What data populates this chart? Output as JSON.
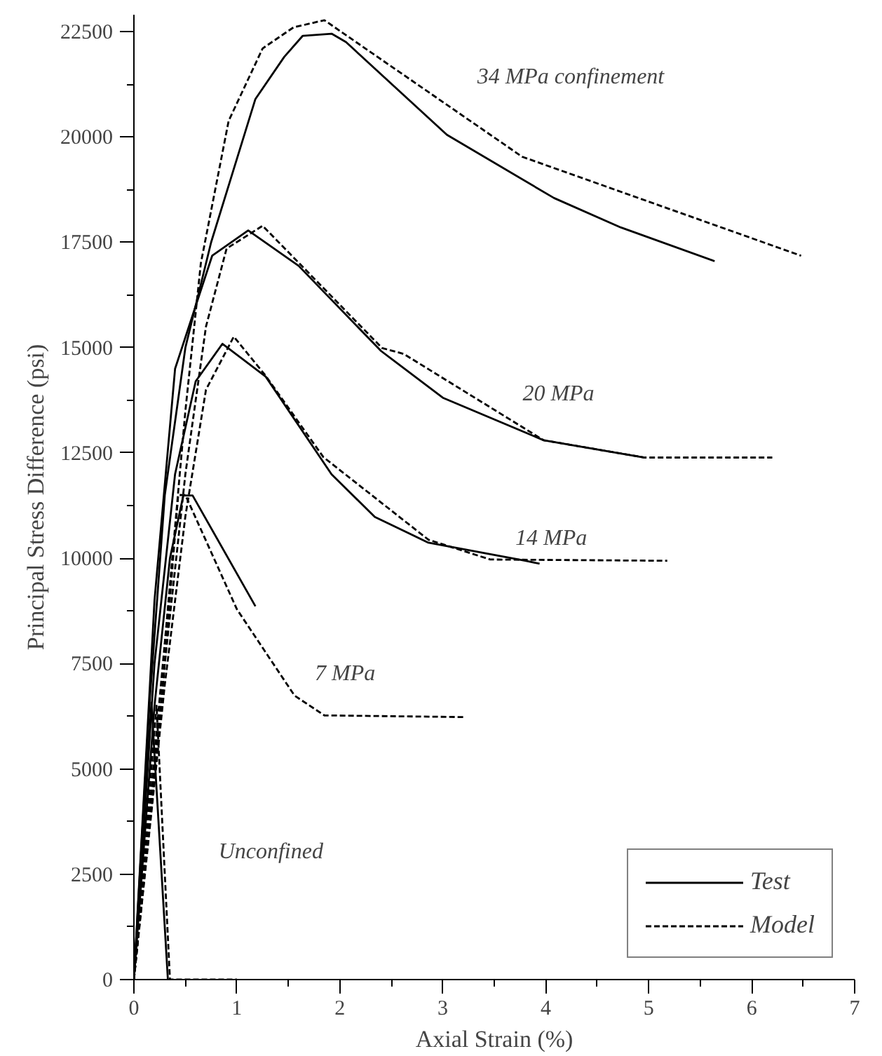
{
  "chart_data": {
    "type": "line",
    "xlabel": "Axial Strain (%)",
    "ylabel": "Principal Stress Difference (psi)",
    "xlim": [
      0,
      7
    ],
    "ylim": [
      0,
      22900
    ],
    "xticks": [
      0,
      {
        "value": 0.5,
        "label": null
      },
      1,
      {
        "value": 1.5,
        "label": null
      },
      2,
      {
        "value": 2.5,
        "label": null
      },
      3,
      {
        "value": 3.5,
        "label": null
      },
      4,
      {
        "value": 4.5,
        "label": null
      },
      5,
      {
        "value": 5.5,
        "label": null
      },
      6,
      {
        "value": 6.5,
        "label": null
      },
      7
    ],
    "yticks": [
      0,
      {
        "value": 1250,
        "label": null
      },
      2500,
      {
        "value": 3750,
        "label": null
      },
      5000,
      {
        "value": 6250,
        "label": null
      },
      7500,
      {
        "value": 8750,
        "label": null
      },
      10000,
      {
        "value": 11250,
        "label": null
      },
      12500,
      {
        "value": 13750,
        "label": null
      },
      15000,
      {
        "value": 16250,
        "label": null
      },
      17500,
      {
        "value": 18750,
        "label": null
      },
      20000,
      {
        "value": 21250,
        "label": null
      },
      22500
    ],
    "grid": false,
    "legend": "bottom right",
    "series": [
      {
        "name": "Test",
        "color": "#000000",
        "line_style": "solid",
        "x": [
          0,
          0.15,
          0.3,
          0.5,
          0.75,
          1.18,
          1.46,
          1.64,
          1.92,
          2.06,
          3.04,
          4.08,
          4.73,
          5.64
        ],
        "values": [
          0,
          6500,
          11500,
          15000,
          17500,
          20900,
          21900,
          22400,
          22450,
          22250,
          20050,
          18550,
          17850,
          17050
        ]
      },
      {
        "name": "Model",
        "color": "#000000",
        "line_style": "dashed",
        "x": [
          0,
          0.3,
          0.5,
          0.65,
          0.92,
          1.25,
          1.55,
          1.85,
          3.77,
          6.48
        ],
        "values": [
          0,
          8000,
          13500,
          17000,
          20380,
          22100,
          22600,
          22770,
          19530,
          17180
        ]
      },
      {
        "color": "#000000",
        "line_style": "solid",
        "x": [
          0,
          0.2,
          0.4,
          0.76,
          1.11,
          1.6,
          2.4,
          3.0,
          3.98,
          4.96
        ],
        "values": [
          0,
          9000,
          14500,
          17180,
          17780,
          16940,
          14920,
          13810,
          12800,
          12390
        ]
      },
      {
        "color": "#000000",
        "line_style": "dashed",
        "x": [
          0,
          0.3,
          0.5,
          0.7,
          0.9,
          1.25,
          2.41,
          2.62,
          3.98,
          4.96,
          6.2
        ],
        "values": [
          0,
          7500,
          12000,
          15500,
          17350,
          17890,
          14990,
          14850,
          12800,
          12390,
          12390
        ]
      },
      {
        "color": "#000000",
        "line_style": "solid",
        "x": [
          0,
          0.2,
          0.4,
          0.6,
          0.86,
          1.28,
          1.92,
          2.34,
          2.86,
          3.8,
          3.94
        ],
        "values": [
          0,
          7500,
          12000,
          14200,
          15090,
          14310,
          11990,
          10980,
          10370,
          9940,
          9870
        ]
      },
      {
        "color": "#000000",
        "line_style": "dashed",
        "x": [
          0,
          0.3,
          0.5,
          0.7,
          0.97,
          1.28,
          1.84,
          2.86,
          3.46,
          5.18
        ],
        "values": [
          0,
          7000,
          11000,
          14000,
          15260,
          14330,
          12400,
          10440,
          9970,
          9940
        ]
      },
      {
        "color": "#000000",
        "line_style": "solid",
        "x": [
          0,
          0.2,
          0.35,
          0.48,
          0.57,
          1.18
        ],
        "values": [
          0,
          6500,
          10000,
          11490,
          11490,
          8860
        ]
      },
      {
        "color": "#000000",
        "line_style": "dashed",
        "x": [
          0,
          0.25,
          0.43,
          0.5,
          1.0,
          1.56,
          1.85,
          3.21
        ],
        "values": [
          0,
          6000,
          11500,
          11500,
          8790,
          6740,
          6270,
          6230
        ]
      },
      {
        "color": "#000000",
        "line_style": "solid",
        "x": [
          0,
          0.17,
          0.33
        ],
        "values": [
          0,
          6570,
          0
        ]
      },
      {
        "color": "#000000",
        "line_style": "dashed",
        "x": [
          0,
          0.22,
          0.35,
          1.0
        ],
        "values": [
          0,
          6500,
          0,
          0
        ]
      }
    ],
    "annotations": [
      "34 MPa confinement",
      "20 MPa",
      "14 MPa",
      "7 MPa",
      "Unconfined"
    ]
  }
}
